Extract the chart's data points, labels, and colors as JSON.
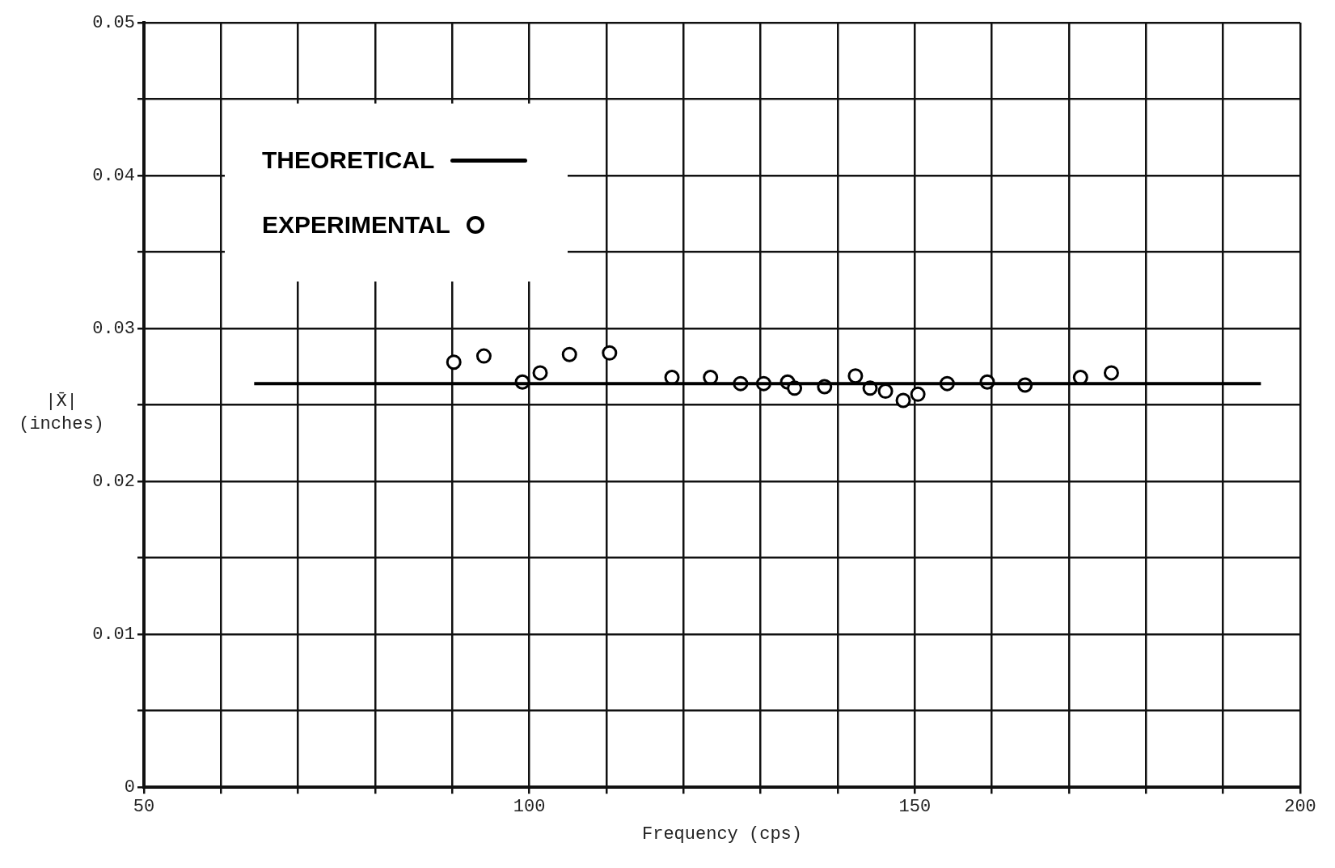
{
  "chart_data": {
    "type": "scatter",
    "xlabel": "Frequency (cps)",
    "ylabel": "|X̄| (inches)",
    "xlim": [
      50,
      200
    ],
    "ylim": [
      0,
      0.05
    ],
    "xticks": [
      50,
      {
        "value": 60,
        "label": null
      },
      {
        "value": 70,
        "label": null
      },
      {
        "value": 80,
        "label": null
      },
      {
        "value": 90,
        "label": null
      },
      100,
      {
        "value": 110,
        "label": null
      },
      {
        "value": 120,
        "label": null
      },
      {
        "value": 130,
        "label": null
      },
      {
        "value": 140,
        "label": null
      },
      150,
      {
        "value": 160,
        "label": null
      },
      {
        "value": 170,
        "label": null
      },
      {
        "value": 180,
        "label": null
      },
      {
        "value": 190,
        "label": null
      },
      200
    ],
    "yticks": [
      0,
      {
        "value": 0.005,
        "label": null
      },
      0.01,
      {
        "value": 0.015,
        "label": null
      },
      0.02,
      {
        "value": 0.025,
        "label": null
      },
      0.03,
      {
        "value": 0.035,
        "label": null
      },
      0.04,
      {
        "value": 0.045,
        "label": null
      },
      0.05
    ],
    "grid": true,
    "legend": "top left",
    "series": [
      {
        "name": "THEORETICAL",
        "type": "line",
        "color": "#000000",
        "marker": "none",
        "line_style": "solid",
        "x": [
          64.3,
          194.9
        ],
        "values": [
          0.0264,
          0.0264
        ]
      },
      {
        "name": "EXPERIMENTAL",
        "type": "scatter",
        "color": "#000000",
        "marker": "circle",
        "x": [
          90.2,
          94.1,
          99.1,
          101.4,
          105.2,
          110.4,
          118.5,
          123.5,
          127.4,
          130.4,
          133.5,
          134.4,
          138.3,
          142.3,
          144.2,
          146.2,
          148.5,
          150.4,
          154.2,
          159.4,
          164.3,
          171.5,
          175.5
        ],
        "values": [
          0.0278,
          0.0282,
          0.0265,
          0.0271,
          0.0283,
          0.0284,
          0.0268,
          0.0268,
          0.0264,
          0.0264,
          0.0265,
          0.0261,
          0.0262,
          0.0269,
          0.0261,
          0.0259,
          0.0253,
          0.0257,
          0.0264,
          0.0265,
          0.0263,
          0.0268,
          0.0271
        ]
      }
    ]
  }
}
